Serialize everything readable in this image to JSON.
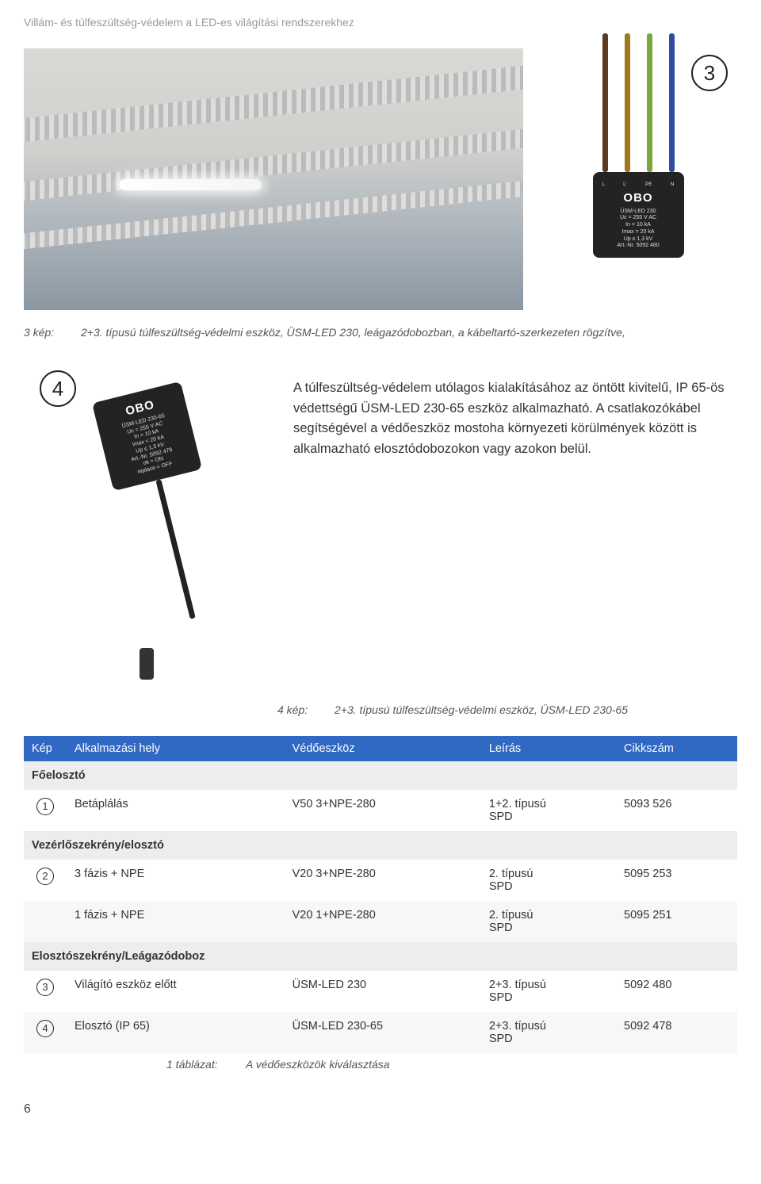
{
  "header": "Villám- és túlfeszültség-védelem a LED-es világítási rendszerekhez",
  "page_number": "6",
  "hero": {
    "badge3": "3",
    "wires": [
      "#5c3a1f",
      "#9f7a1d",
      "#7aa63b",
      "#2d4ea0"
    ],
    "device3": {
      "labels": [
        "L",
        "L'",
        "PE",
        "N"
      ],
      "brand": "OBO",
      "model": "ÜSM-LED 230",
      "lines": [
        "Uc = 255 V AC",
        "In = 10 kA",
        "Imax = 20 kA",
        "Up ≤ 1,3 kV",
        "Art.-Nr. 5092 480"
      ]
    }
  },
  "caption3": {
    "label": "3 kép:",
    "text": "2+3. típusú túlfeszültség-védelmi eszköz, ÜSM-LED 230, leágazódobozban, a kábeltartó-szerkezeten rögzítve,"
  },
  "mid": {
    "badge4": "4",
    "device4": {
      "brand": "OBO",
      "model": "ÜSM-LED 230-65",
      "lines": [
        "Uc = 255 V AC",
        "In = 10 kA",
        "Imax = 20 kA",
        "Up ≤ 1,3 kV",
        "Art.-Nr. 5092 478",
        "ok = ON",
        "replace = OFF"
      ]
    },
    "body": "A túlfeszültség-védelem utólagos kialakításához az öntött kivitelű, IP 65-ös védettségű ÜSM-LED 230-65 eszköz alkalmazható. A csatlakozókábel segítségével a védőeszköz mostoha környezeti körülmények között is alkalmazható elosztódobozokon vagy azokon belül."
  },
  "caption4": {
    "label": "4 kép:",
    "text": "2+3. típusú túlfeszültség-védelmi eszköz, ÜSM-LED 230-65"
  },
  "table": {
    "header_bg": "#2f69c3",
    "columns": [
      "Kép",
      "Alkalmazási hely",
      "Védőeszköz",
      "Leírás",
      "Cikkszám"
    ],
    "sections": [
      {
        "title": "Főelosztó",
        "rows": [
          {
            "num": "1",
            "hely": "Betáplálás",
            "eszk": "V50 3+NPE-280",
            "leir": "1+2. típusú\nSPD",
            "cikk": "5093 526"
          }
        ]
      },
      {
        "title": "Vezérlőszekrény/elosztó",
        "rows": [
          {
            "num": "2",
            "hely": "3 fázis + NPE",
            "eszk": "V20 3+NPE-280",
            "leir": "2. típusú\nSPD",
            "cikk": "5095 253"
          },
          {
            "num": "",
            "hely": "1 fázis + NPE",
            "eszk": "V20 1+NPE-280",
            "leir": "2. típusú\nSPD",
            "cikk": "5095 251"
          }
        ]
      },
      {
        "title": "Elosztószekrény/Leágazódoboz",
        "rows": [
          {
            "num": "3",
            "hely": "Világító eszköz előtt",
            "eszk": "ÜSM-LED 230",
            "leir": "2+3. típusú\nSPD",
            "cikk": "5092 480"
          },
          {
            "num": "4",
            "hely": "Elosztó (IP 65)",
            "eszk": "ÜSM-LED 230-65",
            "leir": "2+3. típusú\nSPD",
            "cikk": "5092 478"
          }
        ]
      }
    ],
    "caption": {
      "label": "1 táblázat:",
      "text": "A védőeszközök kiválasztása"
    }
  }
}
